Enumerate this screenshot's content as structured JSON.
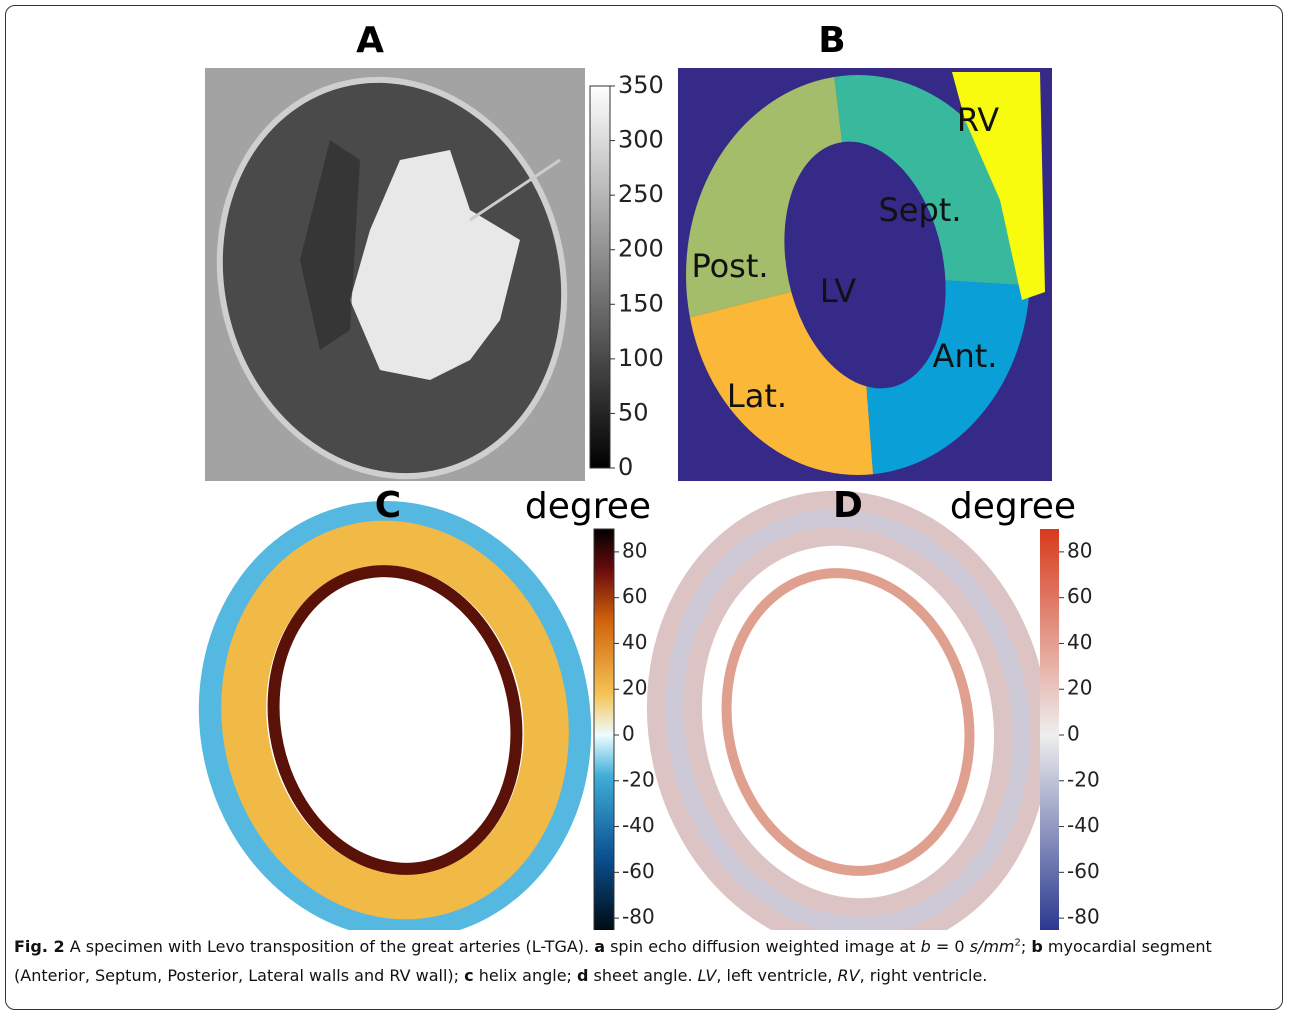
{
  "panels": {
    "a": {
      "label": "A",
      "colorbar": {
        "ylim": [
          0,
          350
        ],
        "ticks": [
          0,
          50,
          100,
          150,
          200,
          250,
          300,
          350
        ]
      }
    },
    "b": {
      "label": "B",
      "segments": [
        "RV",
        "Sept.",
        "Post.",
        "LV",
        "Ant.",
        "Lat."
      ]
    },
    "c": {
      "label": "C",
      "colorbar": {
        "title": "degree",
        "ylim": [
          -90,
          90
        ],
        "ticks": [
          -80,
          -60,
          -40,
          -20,
          0,
          20,
          40,
          60,
          80
        ]
      }
    },
    "d": {
      "label": "D",
      "colorbar": {
        "title": "degree",
        "ylim": [
          -90,
          90
        ],
        "ticks": [
          -80,
          -60,
          -40,
          -20,
          0,
          20,
          40,
          60,
          80
        ]
      }
    }
  },
  "caption": [
    {
      "text": "Fig. 2",
      "style": "bold"
    },
    {
      "text": " A specimen with Levo transposition of the great arteries (L-TGA). ",
      "style": "normal"
    },
    {
      "text": "a",
      "style": "bold"
    },
    {
      "text": " spin echo diffusion weighted image at ",
      "style": "normal"
    },
    {
      "text": "b",
      "style": "italic"
    },
    {
      "text": " = 0 ",
      "style": "normal"
    },
    {
      "text": "s/mm",
      "style": "italic"
    },
    {
      "text": "2",
      "style": "sup"
    },
    {
      "text": "; ",
      "style": "normal"
    },
    {
      "text": "b",
      "style": "bold"
    },
    {
      "text": " myocardial segment (Anterior, Septum, Posterior, Lateral walls and RV wall); ",
      "style": "normal"
    },
    {
      "text": "c",
      "style": "bold"
    },
    {
      "text": " helix angle; ",
      "style": "normal"
    },
    {
      "text": "d",
      "style": "bold"
    },
    {
      "text": " sheet angle. ",
      "style": "normal"
    },
    {
      "text": "LV",
      "style": "italic"
    },
    {
      "text": ", left ventricle, ",
      "style": "normal"
    },
    {
      "text": "RV",
      "style": "italic"
    },
    {
      "text": ", right ventricle.",
      "style": "normal"
    }
  ]
}
